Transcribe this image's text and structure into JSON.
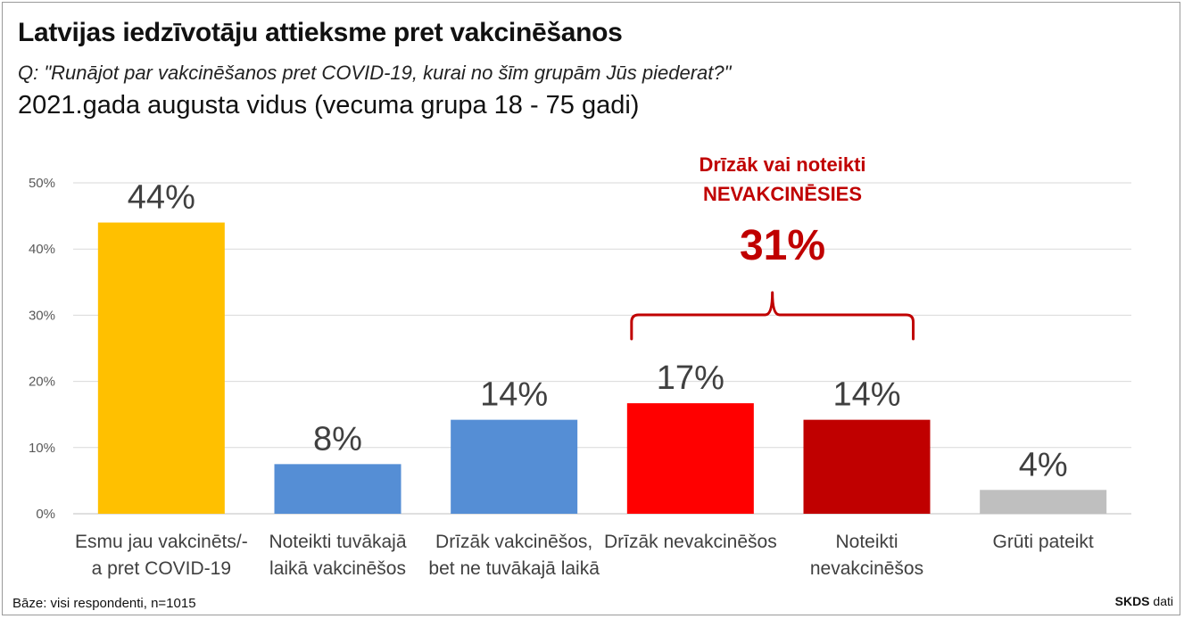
{
  "title": "Latvijas iedzīvotāju attieksme pret vakcinēšanos",
  "question": "Q: \"Runājot par vakcinēšanos pret COVID-19, kurai no šīm grupām Jūs piederat?\"",
  "period": "2021.gada augusta vidus (vecuma grupa 18 - 75 gadi)",
  "footer": {
    "base": "Bāze: visi respondenti, n=1015",
    "source_bold": "SKDS",
    "source_rest": " dati"
  },
  "chart_data": {
    "type": "bar",
    "title": "Latvijas iedzīvotāju attieksme pret vakcinēšanos",
    "xlabel": "",
    "ylabel": "",
    "ylim": [
      0,
      50
    ],
    "yticks": [
      "0%",
      "10%",
      "20%",
      "30%",
      "40%",
      "50%"
    ],
    "grid": true,
    "legend": "none",
    "categories": [
      [
        "Esmu jau vakcinēts/-",
        "a pret COVID-19"
      ],
      [
        "Noteikti tuvākajā",
        "laikā vakcinēšos"
      ],
      [
        "Drīzāk vakcinēšos,",
        "bet ne tuvākajā laikā"
      ],
      [
        "Drīzāk nevakcinēšos"
      ],
      [
        "Noteikti",
        "nevakcinēšos"
      ],
      [
        "Grūti pateikt"
      ]
    ],
    "values": [
      44,
      8,
      14,
      17,
      14,
      4
    ],
    "plotted_values": [
      44,
      7.5,
      14.2,
      16.7,
      14.2,
      3.6
    ],
    "data_labels": [
      "44%",
      "8%",
      "14%",
      "17%",
      "14%",
      "4%"
    ],
    "colors": [
      "#ffc000",
      "#558ed5",
      "#558ed5",
      "#ff0000",
      "#c00000",
      "#bfbfbf"
    ],
    "annotation": {
      "lines": [
        "Drīzāk vai noteikti",
        "NEVAKCINĒSIES"
      ],
      "value": "31%",
      "color": "#c00000",
      "spans_categories": [
        3,
        4
      ]
    }
  }
}
